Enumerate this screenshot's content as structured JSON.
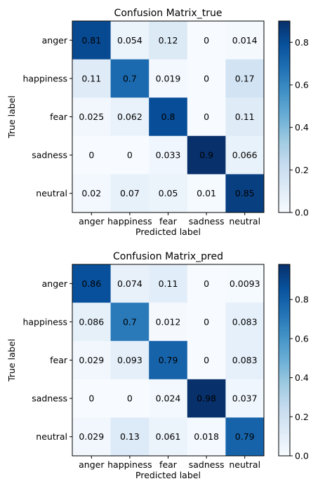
{
  "chart_data": [
    {
      "type": "heatmap",
      "title": "Confusion Matrix_true",
      "xlabel": "Predicted label",
      "ylabel": "True label",
      "x_categories": [
        "anger",
        "happiness",
        "fear",
        "sadness",
        "neutral"
      ],
      "y_categories": [
        "anger",
        "happiness",
        "fear",
        "sadness",
        "neutral"
      ],
      "values": [
        [
          0.81,
          0.054,
          0.12,
          0,
          0.014
        ],
        [
          0.11,
          0.7,
          0.019,
          0,
          0.17
        ],
        [
          0.025,
          0.062,
          0.8,
          0,
          0.11
        ],
        [
          0,
          0,
          0.033,
          0.9,
          0.066
        ],
        [
          0.02,
          0.07,
          0.05,
          0.01,
          0.85
        ]
      ],
      "cell_labels": [
        [
          "0.81",
          "0.054",
          "0.12",
          "0",
          "0.014"
        ],
        [
          "0.11",
          "0.7",
          "0.019",
          "0",
          "0.17"
        ],
        [
          "0.025",
          "0.062",
          "0.8",
          "0",
          "0.11"
        ],
        [
          "0",
          "0",
          "0.033",
          "0.9",
          "0.066"
        ],
        [
          "0.02",
          "0.07",
          "0.05",
          "0.01",
          "0.85"
        ]
      ],
      "colormap": "Blues",
      "colorbar": {
        "range": [
          0,
          0.9
        ],
        "ticks": [
          0.0,
          0.2,
          0.4,
          0.6,
          0.8
        ],
        "tick_labels": [
          "0.0",
          "0.2",
          "0.4",
          "0.6",
          "0.8"
        ]
      }
    },
    {
      "type": "heatmap",
      "title": "Confusion Matrix_pred",
      "xlabel": "Predicted label",
      "ylabel": "True label",
      "x_categories": [
        "anger",
        "happiness",
        "fear",
        "sadness",
        "neutral"
      ],
      "y_categories": [
        "anger",
        "happiness",
        "fear",
        "sadness",
        "neutral"
      ],
      "values": [
        [
          0.86,
          0.074,
          0.11,
          0,
          0.0093
        ],
        [
          0.086,
          0.7,
          0.012,
          0,
          0.083
        ],
        [
          0.029,
          0.093,
          0.79,
          0,
          0.083
        ],
        [
          0,
          0,
          0.024,
          0.98,
          0.037
        ],
        [
          0.029,
          0.13,
          0.061,
          0.018,
          0.79
        ]
      ],
      "cell_labels": [
        [
          "0.86",
          "0.074",
          "0.11",
          "0",
          "0.0093"
        ],
        [
          "0.086",
          "0.7",
          "0.012",
          "0",
          "0.083"
        ],
        [
          "0.029",
          "0.093",
          "0.79",
          "0",
          "0.083"
        ],
        [
          "0",
          "0",
          "0.024",
          "0.98",
          "0.037"
        ],
        [
          "0.029",
          "0.13",
          "0.061",
          "0.018",
          "0.79"
        ]
      ],
      "colormap": "Blues",
      "colorbar": {
        "range": [
          0,
          0.98
        ],
        "ticks": [
          0.0,
          0.2,
          0.4,
          0.6,
          0.8
        ],
        "tick_labels": [
          "0.0",
          "0.2",
          "0.4",
          "0.6",
          "0.8"
        ]
      }
    }
  ]
}
